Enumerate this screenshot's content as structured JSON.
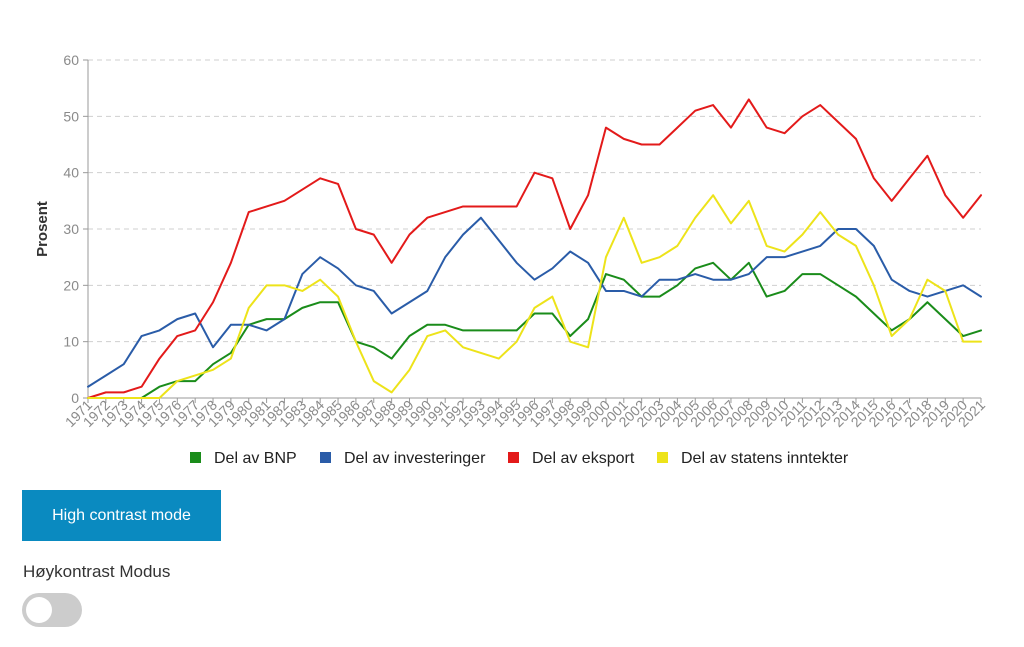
{
  "chart_data": {
    "type": "line",
    "ylabel": "Prosent",
    "ylim": [
      0,
      60
    ],
    "yticks": [
      0,
      10,
      20,
      30,
      40,
      50,
      60
    ],
    "grid": true,
    "legend_position": "bottom",
    "x": [
      "1971",
      "1972",
      "1973",
      "1974",
      "1975",
      "1976",
      "1977",
      "1978",
      "1979",
      "1980",
      "1981",
      "1982",
      "1983",
      "1984",
      "1985",
      "1986",
      "1987",
      "1988",
      "1989",
      "1990",
      "1991",
      "1992",
      "1993",
      "1994",
      "1995",
      "1996",
      "1997",
      "1998",
      "1999",
      "2000",
      "2001",
      "2002",
      "2003",
      "2004",
      "2005",
      "2006",
      "2007",
      "2008",
      "2009",
      "2010",
      "2011",
      "2012",
      "2013",
      "2014",
      "2015",
      "2016",
      "2017",
      "2018",
      "2019",
      "2020",
      "2021"
    ],
    "series": [
      {
        "name": "Del av BNP",
        "color": "#1a8c1a",
        "values": [
          0,
          0,
          0,
          0,
          2,
          3,
          3,
          6,
          8,
          13,
          14,
          14,
          16,
          17,
          17,
          10,
          9,
          7,
          11,
          13,
          13,
          12,
          12,
          12,
          12,
          15,
          15,
          11,
          14,
          22,
          21,
          18,
          18,
          20,
          23,
          24,
          21,
          24,
          18,
          19,
          22,
          22,
          20,
          18,
          15,
          12,
          14,
          17,
          14,
          11,
          12
        ]
      },
      {
        "name": "Del av investeringer",
        "color": "#2a5ca8",
        "values": [
          2,
          4,
          6,
          11,
          12,
          14,
          15,
          9,
          13,
          13,
          12,
          14,
          22,
          25,
          23,
          20,
          19,
          15,
          17,
          19,
          25,
          29,
          32,
          28,
          24,
          21,
          23,
          26,
          24,
          19,
          19,
          18,
          21,
          21,
          22,
          21,
          21,
          22,
          25,
          25,
          26,
          27,
          30,
          30,
          27,
          21,
          19,
          18,
          19,
          20,
          18
        ]
      },
      {
        "name": "Del av eksport",
        "color": "#e31a1a",
        "values": [
          0,
          1,
          1,
          2,
          7,
          11,
          12,
          17,
          24,
          33,
          34,
          35,
          37,
          39,
          38,
          30,
          29,
          24,
          29,
          32,
          33,
          34,
          34,
          34,
          34,
          40,
          39,
          30,
          36,
          48,
          46,
          45,
          45,
          48,
          51,
          52,
          48,
          53,
          48,
          47,
          50,
          52,
          49,
          46,
          39,
          35,
          39,
          43,
          36,
          32,
          36
        ]
      },
      {
        "name": "Del av statens inntekter",
        "color": "#ede31a",
        "values": [
          0,
          0,
          0,
          0,
          0,
          3,
          4,
          5,
          7,
          16,
          20,
          20,
          19,
          21,
          18,
          10,
          3,
          1,
          5,
          11,
          12,
          9,
          8,
          7,
          10,
          16,
          18,
          10,
          9,
          25,
          32,
          24,
          25,
          27,
          32,
          36,
          31,
          35,
          27,
          26,
          29,
          33,
          29,
          27,
          20,
          11,
          14,
          21,
          19,
          10,
          10
        ]
      }
    ]
  },
  "controls": {
    "high_contrast_button": "High contrast mode",
    "toggle_label": "Høykontrast Modus",
    "button_color": "#0a8ac0",
    "toggle_color": "#cccccc"
  }
}
